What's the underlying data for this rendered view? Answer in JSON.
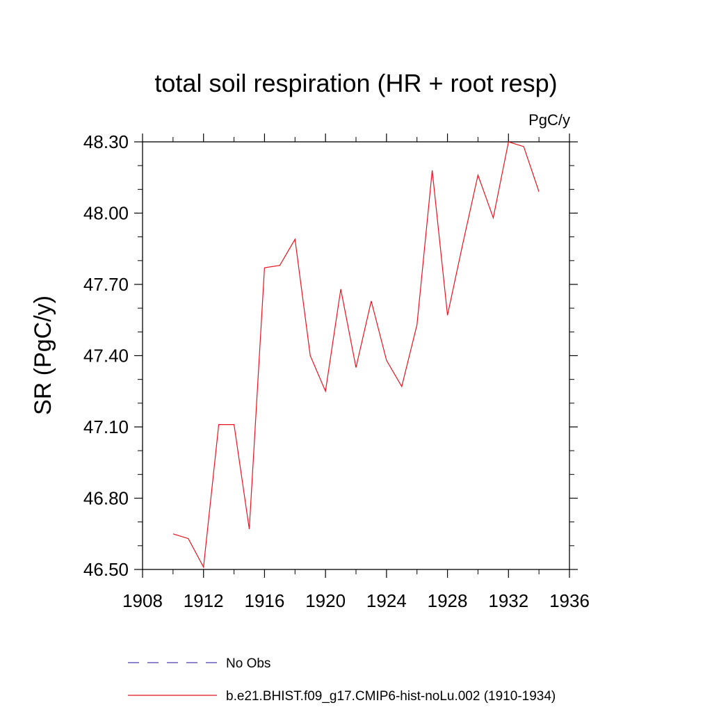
{
  "chart_data": {
    "type": "line",
    "title": "total soil respiration (HR + root resp)",
    "units": "PgC/y",
    "ylabel": "SR  (PgC/y)",
    "xlabel": "",
    "xlim": [
      1908,
      1936
    ],
    "ylim": [
      46.5,
      48.3
    ],
    "x_ticks": [
      1908,
      1912,
      1916,
      1920,
      1924,
      1928,
      1932,
      1936
    ],
    "y_ticks": [
      46.5,
      46.8,
      47.1,
      47.4,
      47.7,
      48.0,
      48.3
    ],
    "y_tick_labels": [
      "46.50",
      "46.80",
      "47.10",
      "47.40",
      "47.70",
      "48.00",
      "48.30"
    ],
    "grid": false,
    "legend_placement": "bottom",
    "series": [
      {
        "name": "No Obs",
        "color": "#4b3fb0",
        "style": "dashed",
        "x": [],
        "y": []
      },
      {
        "name": "b.e21.BHIST.f09_g17.CMIP6-hist-noLu.002 (1910-1934)",
        "color": "#e8141c",
        "style": "solid",
        "x": [
          1910,
          1911,
          1912,
          1913,
          1914,
          1915,
          1916,
          1917,
          1918,
          1919,
          1920,
          1921,
          1922,
          1923,
          1924,
          1925,
          1926,
          1927,
          1928,
          1929,
          1930,
          1931,
          1932,
          1933,
          1934
        ],
        "y": [
          46.65,
          46.63,
          46.51,
          47.11,
          47.11,
          46.67,
          47.77,
          47.78,
          47.89,
          47.4,
          47.25,
          47.68,
          47.35,
          47.63,
          47.38,
          47.27,
          47.53,
          48.18,
          47.57,
          47.87,
          48.16,
          47.98,
          48.3,
          48.28,
          48.09
        ]
      }
    ]
  }
}
